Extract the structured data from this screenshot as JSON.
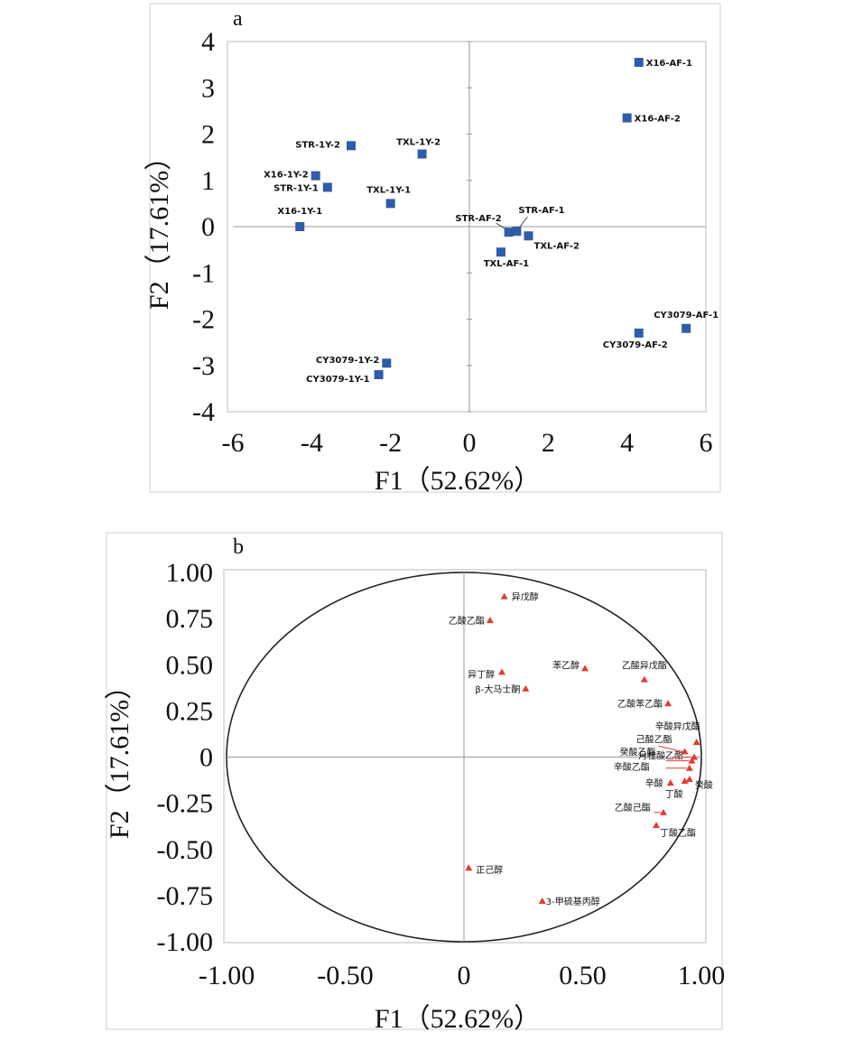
{
  "chart_data": [
    {
      "type": "scatter",
      "panel_label": "a",
      "xlabel": "F1（52.62%）",
      "ylabel": "F2（17.61%）",
      "xlim": [
        -6,
        6
      ],
      "ylim": [
        -4,
        4
      ],
      "xticks": [
        "-6",
        "-4",
        "-2",
        "0",
        "2",
        "4",
        "6"
      ],
      "yticks": [
        "4",
        "3",
        "2",
        "1",
        "0",
        "-1",
        "-2",
        "-3",
        "-4"
      ],
      "marker_color": "#2e5ca8",
      "points": [
        {
          "label": "X16-AF-1",
          "x": 4.3,
          "y": 3.55
        },
        {
          "label": "X16-AF-2",
          "x": 4.0,
          "y": 2.35
        },
        {
          "label": "STR-1Y-2",
          "x": -3.0,
          "y": 1.75
        },
        {
          "label": "TXL-1Y-2",
          "x": -1.2,
          "y": 1.57
        },
        {
          "label": "X16-1Y-2",
          "x": -3.9,
          "y": 1.1
        },
        {
          "label": "STR-1Y-1",
          "x": -3.6,
          "y": 0.85
        },
        {
          "label": "TXL-1Y-1",
          "x": -2.0,
          "y": 0.5
        },
        {
          "label": "X16-1Y-1",
          "x": -4.3,
          "y": 0.0
        },
        {
          "label": "STR-AF-2",
          "x": 1.0,
          "y": -0.12
        },
        {
          "label": "STR-AF-1",
          "x": 1.2,
          "y": -0.1
        },
        {
          "label": "TXL-AF-2",
          "x": 1.5,
          "y": -0.2
        },
        {
          "label": "TXL-AF-1",
          "x": 0.8,
          "y": -0.55
        },
        {
          "label": "CY3079-AF-1",
          "x": 5.5,
          "y": -2.2
        },
        {
          "label": "CY3079-AF-2",
          "x": 4.3,
          "y": -2.3
        },
        {
          "label": "CY3079-1Y-2",
          "x": -2.1,
          "y": -2.95
        },
        {
          "label": "CY3079-1Y-1",
          "x": -2.3,
          "y": -3.2
        }
      ]
    },
    {
      "type": "scatter",
      "panel_label": "b",
      "xlabel": "F1（52.62%）",
      "ylabel": "F2（17.61%）",
      "xlim": [
        -1,
        1
      ],
      "ylim": [
        -1,
        1
      ],
      "xticks": [
        "-1.00",
        "-0.50",
        "0",
        "0.50",
        "1.00"
      ],
      "yticks": [
        "1.00",
        "0.75",
        "0.50",
        "0.25",
        "0",
        "-0.25",
        "-0.50",
        "-0.75",
        "-1.00"
      ],
      "marker_color": "#e23b2e",
      "points": [
        {
          "label": "异戊醇",
          "x": 0.17,
          "y": 0.87
        },
        {
          "label": "乙酸乙酯",
          "x": 0.11,
          "y": 0.74
        },
        {
          "label": "苯乙醇",
          "x": 0.51,
          "y": 0.48
        },
        {
          "label": "异丁醇",
          "x": 0.16,
          "y": 0.46
        },
        {
          "label": "β-大马士酮",
          "x": 0.26,
          "y": 0.37
        },
        {
          "label": "乙酸异戊酯",
          "x": 0.76,
          "y": 0.42
        },
        {
          "label": "乙酸苯乙酯",
          "x": 0.86,
          "y": 0.29
        },
        {
          "label": "辛酸异戊酯",
          "x": 0.98,
          "y": 0.08
        },
        {
          "label": "己酸乙酯",
          "x": 0.93,
          "y": 0.03
        },
        {
          "label": "月桂酸乙酯",
          "x": 0.97,
          "y": 0.0
        },
        {
          "label": "癸酸乙酯",
          "x": 0.96,
          "y": -0.02
        },
        {
          "label": "辛酸乙酯",
          "x": 0.95,
          "y": -0.06
        },
        {
          "label": "辛酸",
          "x": 0.87,
          "y": -0.14
        },
        {
          "label": "丁酸",
          "x": 0.93,
          "y": -0.13
        },
        {
          "label": "癸酸",
          "x": 0.95,
          "y": -0.12
        },
        {
          "label": "乙酸己酯",
          "x": 0.84,
          "y": -0.3
        },
        {
          "label": "丁酸乙酯",
          "x": 0.81,
          "y": -0.37
        },
        {
          "label": "正己醇",
          "x": 0.02,
          "y": -0.6
        },
        {
          "label": "3-甲硫基丙醇",
          "x": 0.33,
          "y": -0.78
        }
      ]
    }
  ]
}
